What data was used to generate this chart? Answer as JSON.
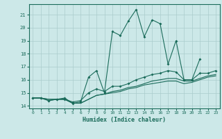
{
  "title": "",
  "xlabel": "Humidex (Indice chaleur)",
  "ylabel": "",
  "background_color": "#cce8e8",
  "grid_color": "#aacccc",
  "line_color": "#1a6b5a",
  "x_values": [
    0,
    1,
    2,
    3,
    4,
    5,
    6,
    7,
    8,
    9,
    10,
    11,
    12,
    13,
    14,
    15,
    16,
    17,
    18,
    19,
    20,
    21,
    22,
    23
  ],
  "xlim": [
    -0.5,
    23.5
  ],
  "ylim": [
    13.8,
    21.8
  ],
  "yticks": [
    14,
    15,
    16,
    17,
    18,
    19,
    20,
    21
  ],
  "series1": [
    14.6,
    14.6,
    14.4,
    14.5,
    14.6,
    14.2,
    14.3,
    16.2,
    16.7,
    15.0,
    19.7,
    19.4,
    20.5,
    21.4,
    19.3,
    20.6,
    20.3,
    17.2,
    19.0,
    16.0,
    16.0,
    17.6,
    null,
    null
  ],
  "series2": [
    14.6,
    14.6,
    14.4,
    14.5,
    14.5,
    14.3,
    14.4,
    15.0,
    15.3,
    15.1,
    15.5,
    15.5,
    15.7,
    16.0,
    16.2,
    16.4,
    16.5,
    16.7,
    16.6,
    16.0,
    16.0,
    16.5,
    16.5,
    16.7
  ],
  "series3": [
    14.6,
    14.6,
    14.5,
    14.5,
    14.5,
    14.2,
    14.2,
    14.5,
    14.8,
    14.9,
    15.1,
    15.2,
    15.4,
    15.5,
    15.7,
    15.9,
    16.0,
    16.1,
    16.1,
    15.9,
    15.9,
    16.1,
    16.3,
    16.4
  ],
  "series4": [
    14.6,
    14.6,
    14.5,
    14.5,
    14.5,
    14.2,
    14.2,
    14.5,
    14.8,
    14.9,
    15.0,
    15.1,
    15.3,
    15.4,
    15.6,
    15.7,
    15.8,
    15.9,
    15.9,
    15.7,
    15.8,
    16.0,
    16.2,
    16.3
  ]
}
